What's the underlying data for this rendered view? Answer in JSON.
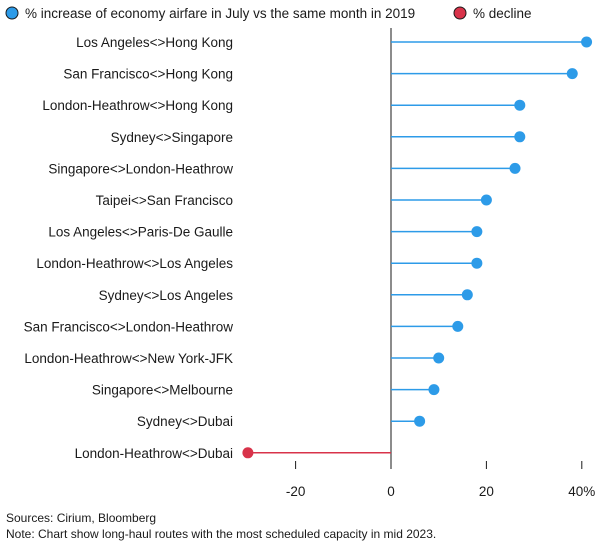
{
  "legend": [
    {
      "label": "% increase of economy airfare in July vs the same month in 2019",
      "color": "#2d9be8"
    },
    {
      "label": "% decline",
      "color": "#d8334a"
    }
  ],
  "footer": {
    "sources": "Sources: Cirium, Bloomberg",
    "note": "Note: Chart show long-haul routes with the most scheduled capacity in mid 2023."
  },
  "chart_data": {
    "type": "lollipop",
    "orientation": "horizontal",
    "categories": [
      "Los Angeles<>Hong Kong",
      "San Francisco<>Hong Kong",
      "London-Heathrow<>Hong Kong",
      "Sydney<>Singapore",
      "Singapore<>London-Heathrow",
      "Taipei<>San Francisco",
      "Los Angeles<>Paris-De Gaulle",
      "London-Heathrow<>Los Angeles",
      "Sydney<>Los Angeles",
      "San Francisco<>London-Heathrow",
      "London-Heathrow<>New York-JFK",
      "Singapore<>Melbourne",
      "Sydney<>Dubai",
      "London-Heathrow<>Dubai"
    ],
    "values": [
      41,
      38,
      27,
      27,
      26,
      20,
      18,
      18,
      16,
      14,
      10,
      9,
      6,
      -30
    ],
    "xlim": [
      -34,
      42
    ],
    "xticks": [
      -20,
      0,
      20,
      40
    ],
    "xtick_labels": [
      "-20",
      "0",
      "20",
      "40%"
    ],
    "positive_color": "#2d9be8",
    "negative_color": "#d8334a",
    "gridlines": false
  }
}
